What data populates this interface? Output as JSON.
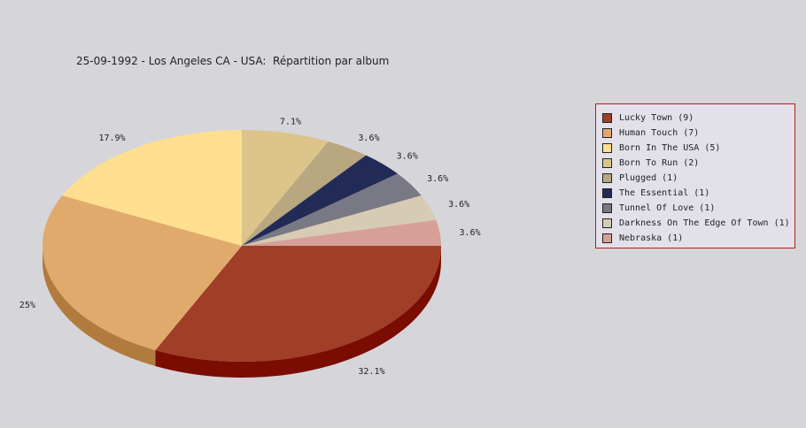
{
  "chart_data": {
    "type": "pie",
    "style": "3d",
    "title": "25-09-1992 - Los Angeles CA - USA:  Répartition par album",
    "legend_position": "right",
    "slices": [
      {
        "legend": "Lucky Town (9)",
        "value": 9,
        "percent_label": "32.1%",
        "color": "#a03e28",
        "side_color": "#7a0c00"
      },
      {
        "legend": "Human Touch (7)",
        "value": 7,
        "percent_label": "25%",
        "color": "#e0aa6c",
        "side_color": "#b07b3d"
      },
      {
        "legend": "Born In The USA (5)",
        "value": 5,
        "percent_label": "17.9%",
        "color": "#fddf8f",
        "side_color": "#c8a860"
      },
      {
        "legend": "Born To Run (2)",
        "value": 2,
        "percent_label": "7.1%",
        "color": "#dcc48a",
        "side_color": "#aa9258"
      },
      {
        "legend": "Plugged (1)",
        "value": 1,
        "percent_label": "3.6%",
        "color": "#b8a77f",
        "side_color": "#8a7a55"
      },
      {
        "legend": "The Essential (1)",
        "value": 1,
        "percent_label": "3.6%",
        "color": "#222a56",
        "side_color": "#10153a"
      },
      {
        "legend": "Tunnel Of Love (1)",
        "value": 1,
        "percent_label": "3.6%",
        "color": "#797885",
        "side_color": "#55545e"
      },
      {
        "legend": "Darkness On The Edge Of Town (1)",
        "value": 1,
        "percent_label": "3.6%",
        "color": "#d6cbb3",
        "side_color": "#aaa08a"
      },
      {
        "legend": "Nebraska (1)",
        "value": 1,
        "percent_label": "3.6%",
        "color": "#d6a096",
        "side_color": "#aa766c"
      }
    ]
  }
}
